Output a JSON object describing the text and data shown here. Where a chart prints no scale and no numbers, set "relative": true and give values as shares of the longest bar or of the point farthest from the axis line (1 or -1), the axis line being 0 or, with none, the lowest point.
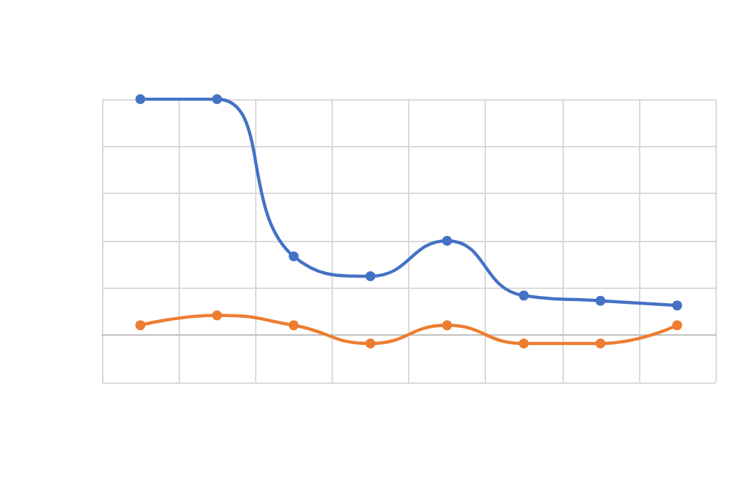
{
  "chart_data": {
    "type": "line",
    "relative": true,
    "categories": [
      null,
      null,
      null,
      null,
      null,
      null,
      null,
      null
    ],
    "series": [
      {
        "color": "#4472c4",
        "values": [
          1,
          1,
          0.334,
          0.25,
          0.4,
          0.168,
          0.146,
          0.126
        ]
      },
      {
        "color": "#ed7d31",
        "values": [
          0.042,
          0.084,
          0.042,
          -0.035,
          0.042,
          -0.035,
          -0.035,
          0.042
        ]
      }
    ],
    "grid": true,
    "marker": "circle",
    "line_style": "solid"
  }
}
